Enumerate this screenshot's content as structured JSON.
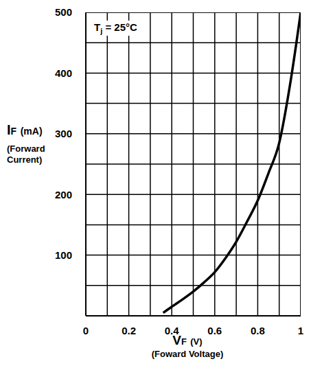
{
  "chart_data": {
    "type": "line",
    "annotation": {
      "symbol": "T",
      "subscript": "j",
      "text": "= 25°C"
    },
    "x_label": {
      "symbol": "V",
      "subscript": "F",
      "unit": "(V)",
      "description": "(Foward Voltage)"
    },
    "y_label": {
      "symbol": "I",
      "subscript": "F",
      "unit": "(mA)",
      "description": "(Forward Current)"
    },
    "x": [
      0.36,
      0.4,
      0.45,
      0.5,
      0.55,
      0.6,
      0.65,
      0.7,
      0.75,
      0.8,
      0.85,
      0.9,
      0.95,
      0.98,
      1.0
    ],
    "values": [
      5,
      15,
      27,
      40,
      55,
      72,
      95,
      122,
      155,
      190,
      235,
      285,
      380,
      450,
      500
    ],
    "color": "#000000",
    "xlim": [
      0,
      1
    ],
    "xticks": [
      0,
      0.2,
      0.4,
      0.6,
      0.8,
      1
    ],
    "ylim": [
      0,
      500
    ],
    "yticks": [
      100,
      200,
      300,
      400,
      500
    ],
    "grid": true
  }
}
